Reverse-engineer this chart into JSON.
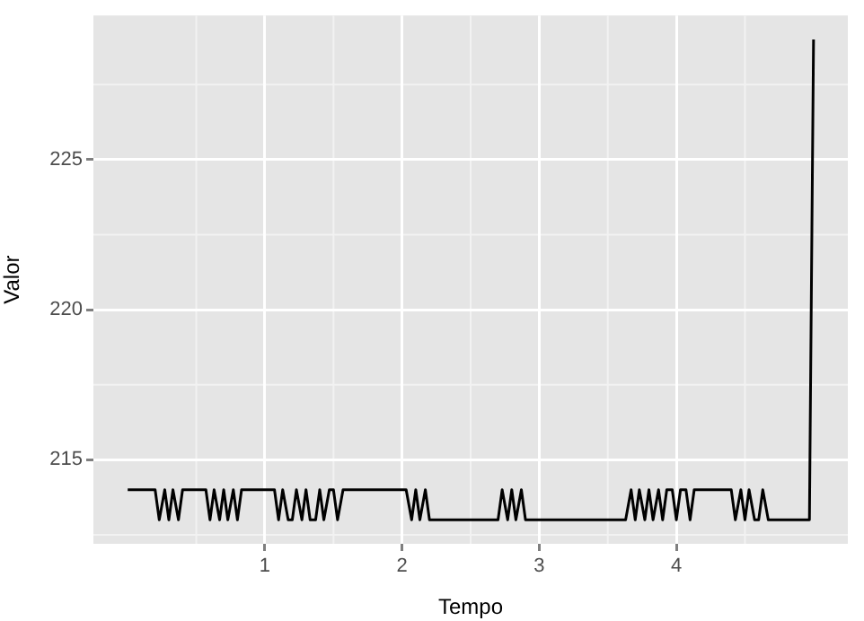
{
  "chart_data": {
    "type": "line",
    "xlabel": "Tempo",
    "ylabel": "Valor",
    "color": "#000000",
    "x": [
      0,
      0.2,
      0.23,
      0.27,
      0.3,
      0.33,
      0.37,
      0.4,
      0.57,
      0.6,
      0.63,
      0.67,
      0.7,
      0.73,
      0.77,
      0.8,
      0.83,
      1.07,
      1.1,
      1.13,
      1.17,
      1.2,
      1.23,
      1.27,
      1.3,
      1.33,
      1.37,
      1.4,
      1.43,
      1.47,
      1.5,
      1.53,
      1.57,
      2.03,
      2.07,
      2.1,
      2.13,
      2.17,
      2.2,
      2.7,
      2.73,
      2.77,
      2.8,
      2.83,
      2.87,
      2.9,
      3.63,
      3.67,
      3.7,
      3.73,
      3.77,
      3.8,
      3.83,
      3.87,
      3.9,
      3.93,
      3.97,
      4,
      4.03,
      4.07,
      4.1,
      4.13,
      4.4,
      4.43,
      4.47,
      4.5,
      4.53,
      4.57,
      4.6,
      4.63,
      4.67,
      4.97,
      5
    ],
    "values": [
      214,
      214,
      213,
      214,
      213,
      214,
      213,
      214,
      214,
      213,
      214,
      213,
      214,
      213,
      214,
      213,
      214,
      214,
      213,
      214,
      213,
      213,
      214,
      213,
      214,
      213,
      213,
      214,
      213,
      214,
      214,
      213,
      214,
      214,
      213,
      214,
      213,
      214,
      213,
      213,
      214,
      213,
      214,
      213,
      214,
      213,
      213,
      214,
      213,
      214,
      213,
      214,
      213,
      214,
      213,
      214,
      214,
      213,
      214,
      214,
      213,
      214,
      214,
      213,
      214,
      213,
      214,
      213,
      213,
      214,
      213,
      213,
      229
    ],
    "xlim": [
      -0.25,
      5.25
    ],
    "ylim": [
      212.2,
      229.8
    ],
    "xticks": [
      1,
      2,
      3,
      4
    ],
    "yticks": [
      215,
      220,
      225
    ],
    "grid": true,
    "marker": "none",
    "line_style": "solid",
    "legend": false
  }
}
